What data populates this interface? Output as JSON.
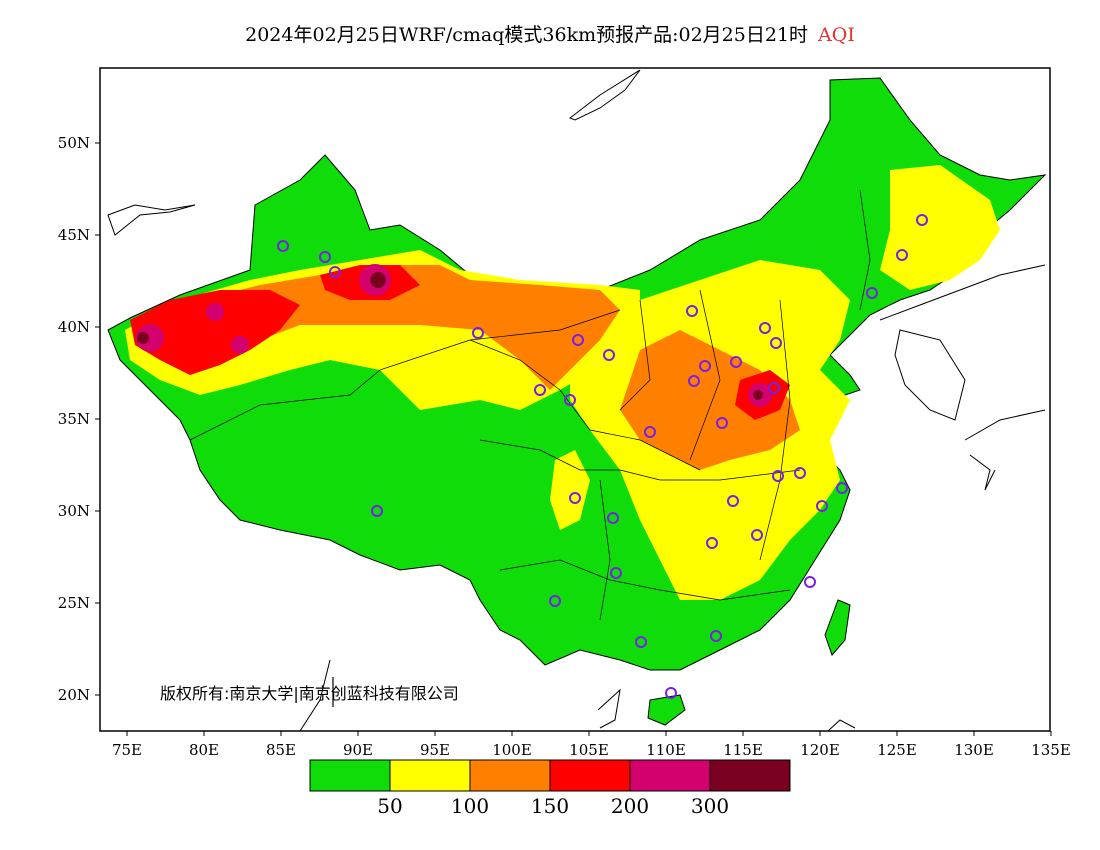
{
  "title": {
    "main": "2024年02月25日WRF/cmaq模式36km预报产品:02月25日21时",
    "variable": "AQI"
  },
  "copyright": "版权所有:南京大学|南京创蓝科技有限公司",
  "axes": {
    "x_ticks": [
      "75E",
      "80E",
      "85E",
      "90E",
      "95E",
      "100E",
      "105E",
      "110E",
      "115E",
      "120E",
      "125E",
      "130E",
      "135E"
    ],
    "y_ticks": [
      "20N",
      "25N",
      "30N",
      "35N",
      "40N",
      "45N",
      "50N"
    ]
  },
  "colorbar": {
    "colors": [
      "#10dc0a",
      "#ffff00",
      "#ff8000",
      "#ff0000",
      "#d4006e",
      "#7a0022"
    ],
    "labels": [
      "50",
      "100",
      "150",
      "200",
      "300"
    ]
  },
  "colors": {
    "station_marker": "#7a1fe8",
    "border": "#000000"
  }
}
